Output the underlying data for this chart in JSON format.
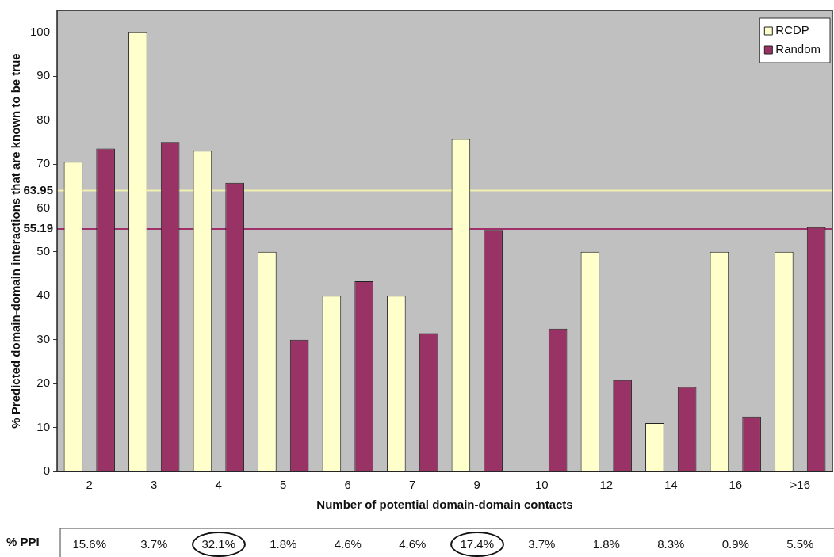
{
  "chart_data": {
    "type": "bar",
    "xlabel": "Number of potential domain-domain contacts",
    "ylabel": "% Predicted domain-domain interactions that are known to be true",
    "categories": [
      "2",
      "3",
      "4",
      "5",
      "6",
      "7",
      "9",
      "10",
      "12",
      "14",
      "16",
      ">16"
    ],
    "series": [
      {
        "name": "RCDP",
        "color": "#ffffcc",
        "values": [
          70.5,
          100,
          73,
          50,
          40,
          40,
          75.7,
          0,
          50,
          11,
          50,
          50
        ]
      },
      {
        "name": "Random",
        "color": "#993366",
        "values": [
          73.5,
          75,
          65.7,
          30,
          43.3,
          31.5,
          55,
          32.5,
          20.8,
          19.2,
          12.5,
          55.6
        ]
      }
    ],
    "ylim": [
      0,
      105
    ],
    "yticks": [
      0,
      10,
      20,
      30,
      40,
      50,
      60,
      70,
      80,
      90,
      100
    ],
    "ref_lines": [
      {
        "axis": "y",
        "value": 63.95,
        "label": "63.95",
        "color": "#f0f0b0"
      },
      {
        "axis": "y",
        "value": 55.19,
        "label": "55.19",
        "color": "#a0306a"
      }
    ],
    "grid": false,
    "legend": "top right",
    "annotations": [
      "% PPI",
      "15.6%",
      "3.7%",
      "32.1%",
      "1.8%",
      "4.6%",
      "4.6%",
      "17.4%",
      "3.7%",
      "1.8%",
      "8.3%",
      "0.9%",
      "5.5%"
    ]
  }
}
